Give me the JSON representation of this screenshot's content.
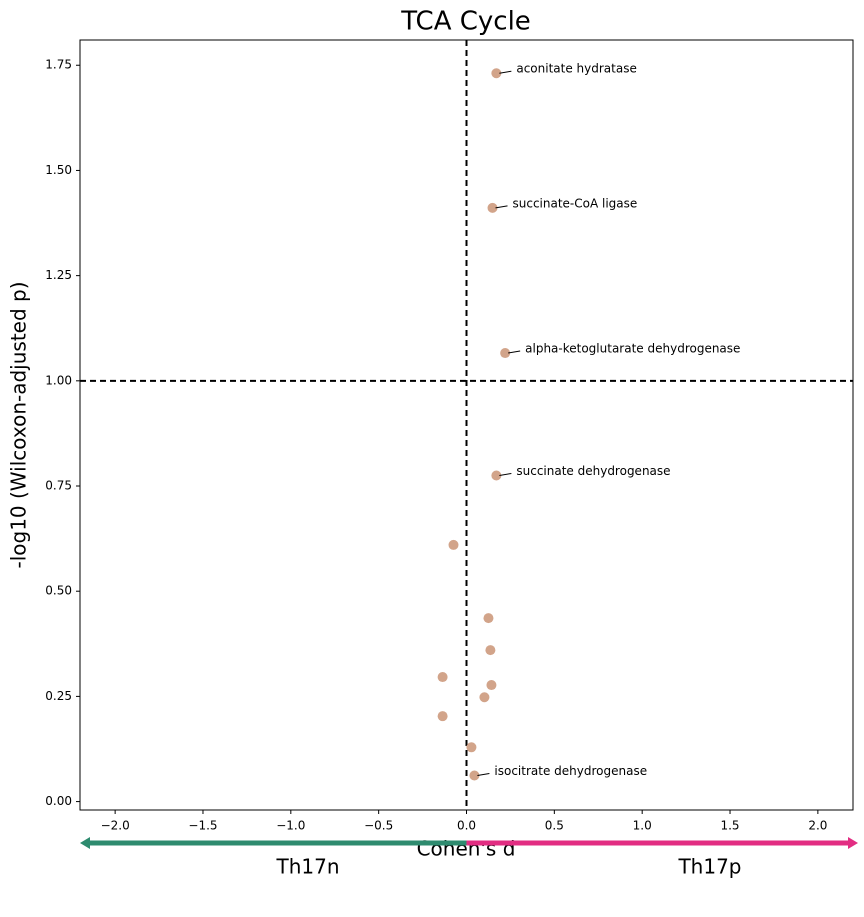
{
  "chart_data": {
    "type": "scatter",
    "title": "TCA Cycle",
    "x_label": "Cohen's d",
    "y_label": "-log10 (Wilcoxon-adjusted p)",
    "x": [
      0.17,
      0.148,
      0.22,
      0.17,
      -0.074,
      0.125,
      0.136,
      -0.136,
      0.142,
      0.102,
      -0.136,
      0.028,
      0.045
    ],
    "values": [
      1.731,
      1.411,
      1.066,
      0.775,
      0.61,
      0.436,
      0.36,
      0.296,
      0.277,
      0.248,
      0.203,
      0.129,
      0.062
    ],
    "point_labels": [
      "aconitate hydratase",
      "succinate-CoA ligase",
      "alpha-ketoglutarate dehydrogenase",
      "succinate dehydrogenase",
      null,
      null,
      null,
      null,
      null,
      null,
      null,
      null,
      "isocitrate dehydrogenase"
    ],
    "color": "#d2a48a",
    "xlim": [
      -2.2,
      2.2
    ],
    "ylim": [
      -0.02,
      1.81
    ],
    "xticks": [
      {
        "value": -2.0,
        "label": "−2.0"
      },
      {
        "value": -1.5,
        "label": "−1.5"
      },
      {
        "value": -1.0,
        "label": "−1.0"
      },
      {
        "value": -0.5,
        "label": "−0.5"
      },
      {
        "value": 0,
        "label": "0.0"
      },
      0.5,
      {
        "value": 1.0,
        "label": "1.0"
      },
      1.5,
      {
        "value": 2.0,
        "label": "2.0"
      }
    ],
    "yticks": [
      {
        "value": 0,
        "label": "0.00"
      },
      0.25,
      {
        "value": 0.5,
        "label": "0.50"
      },
      0.75,
      {
        "value": 1.0,
        "label": "1.00"
      },
      1.25,
      {
        "value": 1.5,
        "label": "1.50"
      },
      1.75
    ],
    "vlines": [
      0
    ],
    "hlines": [
      1
    ],
    "direction_labels": [
      {
        "text": "Th17n",
        "color": "#2e8b6f"
      },
      {
        "text": "Th17p",
        "color": "#e22d82"
      }
    ]
  }
}
